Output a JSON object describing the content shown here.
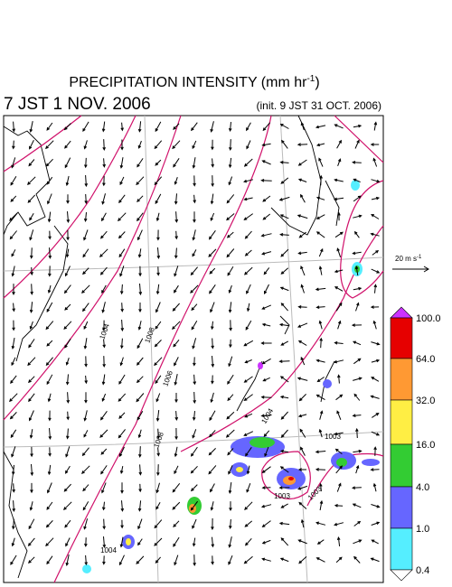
{
  "header": {
    "title": "PRECIPITATION INTENSITY (mm hr",
    "title_exponent": "-1",
    "title_end": ")",
    "valid_time": "7 JST 1 NOV. 2006",
    "init_time": "(init. 9 JST 31 OCT. 2006)"
  },
  "wind_scale": {
    "label": "20 m s",
    "exponent": "-1"
  },
  "colorbar": {
    "labels": [
      "100.0",
      "64.0",
      "32.0",
      "16.0",
      "4.0",
      "1.0",
      "0.4"
    ]
  },
  "isobars": {
    "labels": [
      "1004",
      "1008",
      "1006",
      "1008",
      "1004",
      "1003",
      "1003",
      "1003",
      "1004"
    ]
  }
}
